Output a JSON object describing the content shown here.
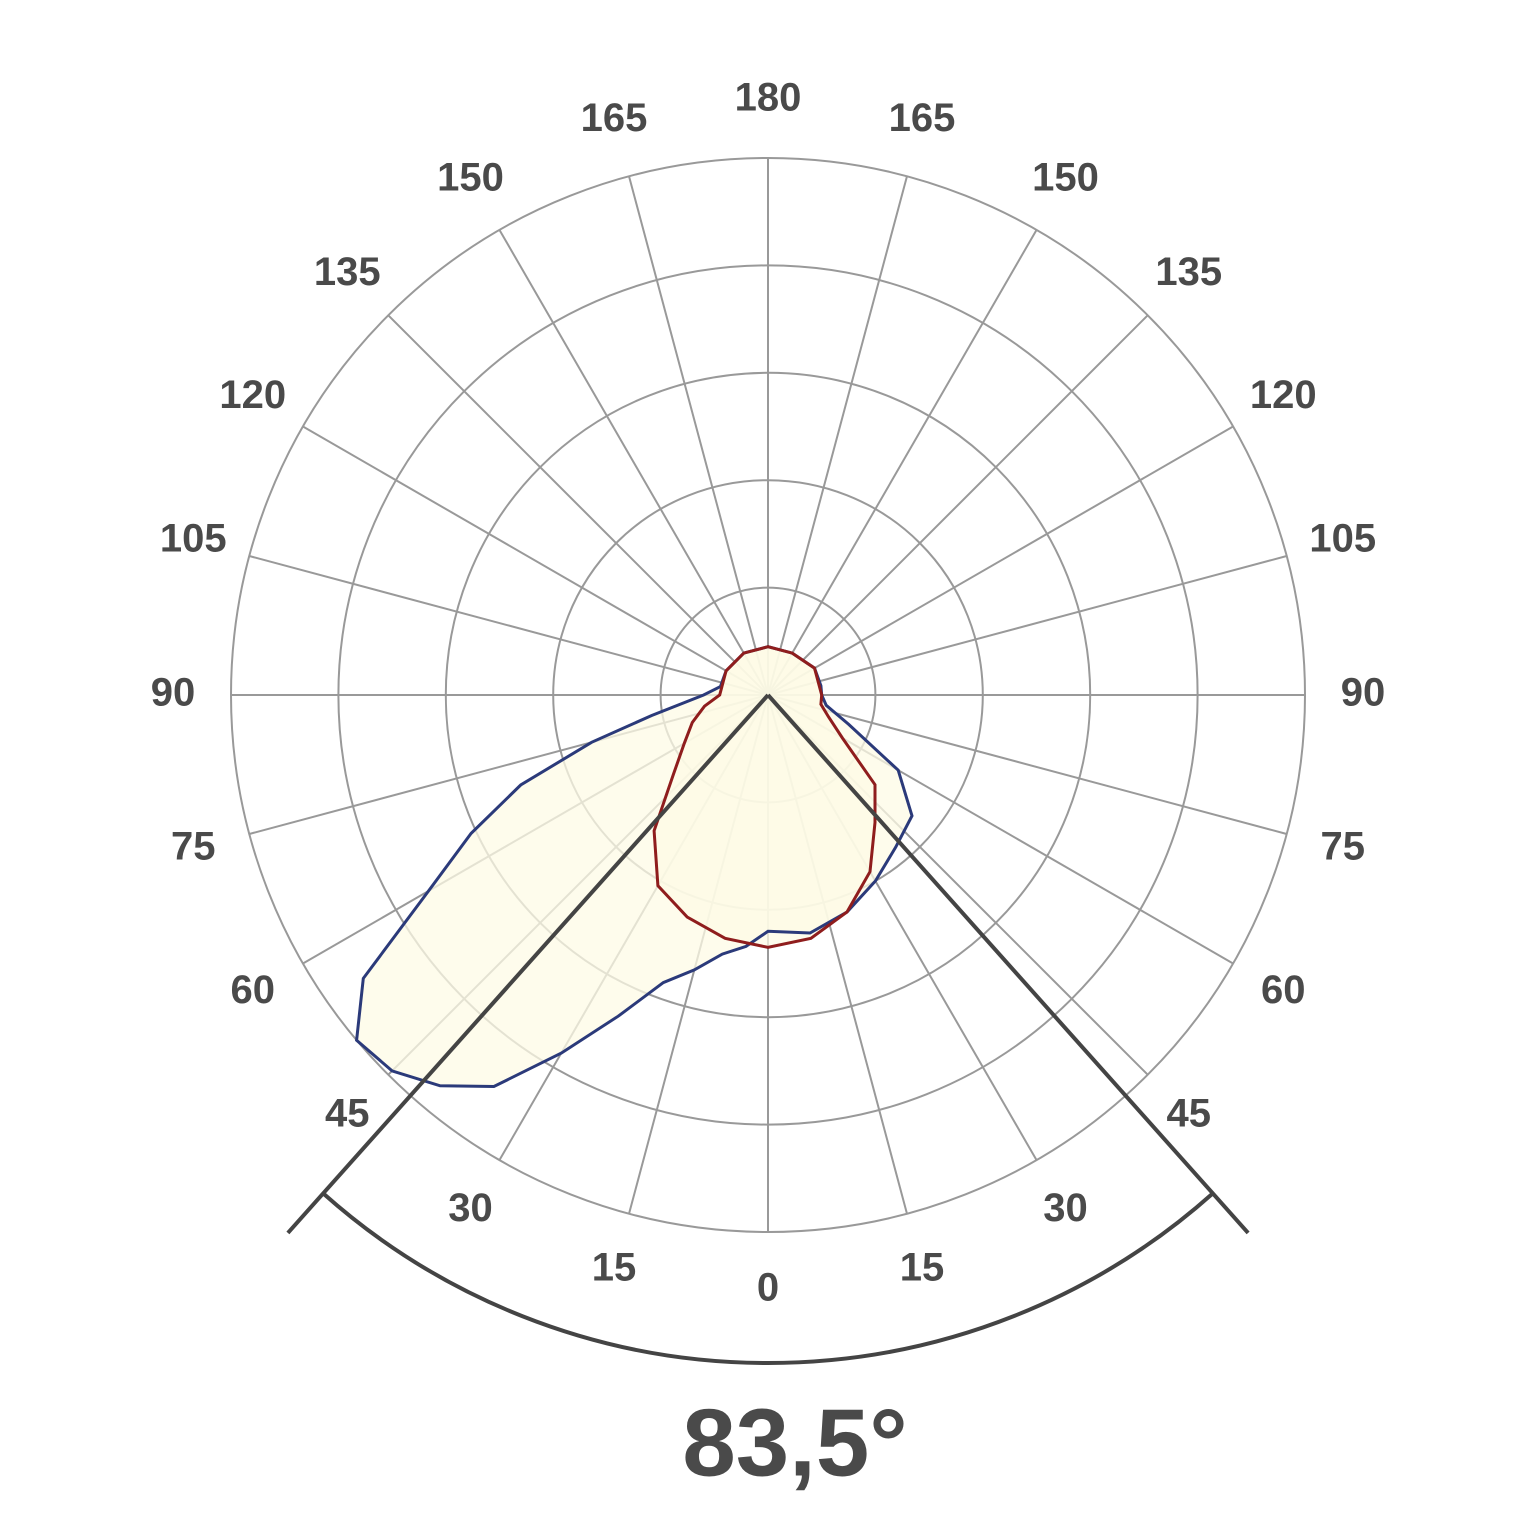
{
  "chart_data": {
    "type": "polar",
    "angle_ticks": [
      0,
      15,
      30,
      45,
      60,
      75,
      90,
      105,
      120,
      135,
      150,
      165,
      180
    ],
    "rlim": [
      0,
      100
    ],
    "rticks": [
      20,
      40,
      60,
      80,
      100
    ],
    "grid": true,
    "beam_angle": {
      "value": 83.5,
      "label": "83,5°"
    },
    "fill": "#fdfbe6",
    "series": [
      {
        "color": "#2b3a7a",
        "theta": [
          -180,
          -150,
          -120,
          -100,
          -90,
          -80,
          -75,
          -70,
          -65,
          -60,
          -55,
          -50,
          -45,
          -40,
          -35,
          -30,
          -25,
          -20,
          -15,
          -10,
          -5,
          0,
          10,
          20,
          30,
          40,
          50,
          60,
          70,
          80,
          90,
          100,
          120,
          150,
          180
        ],
        "values": [
          9,
          9,
          9,
          9,
          12,
          22,
          34,
          49,
          61,
          73,
          92,
          100,
          99,
          95,
          89,
          77,
          66,
          57,
          53,
          49,
          47,
          44,
          45,
          43,
          40,
          37,
          35,
          28,
          16,
          11,
          10,
          10,
          10,
          9,
          9
        ]
      },
      {
        "color": "#8f1d1d",
        "theta": [
          -180,
          -150,
          -120,
          -90,
          -80,
          -70,
          -60,
          -50,
          -40,
          -30,
          -20,
          -10,
          0,
          10,
          20,
          30,
          40,
          50,
          60,
          70,
          80,
          90,
          120,
          150,
          180
        ],
        "values": [
          9,
          9,
          9,
          9,
          12,
          15,
          18,
          23,
          33,
          41,
          44,
          46,
          47,
          46,
          43,
          38,
          31,
          26,
          16,
          12,
          10,
          10,
          10,
          9,
          9
        ]
      }
    ]
  }
}
